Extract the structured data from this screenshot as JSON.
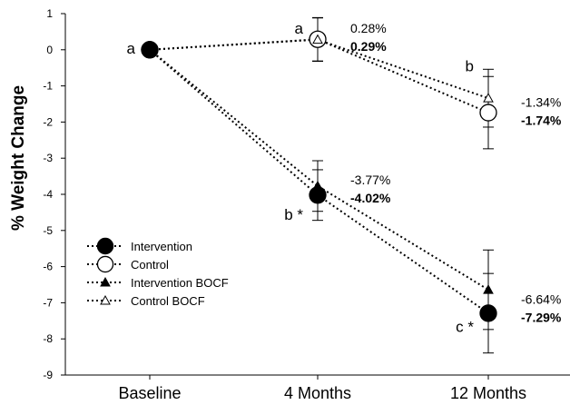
{
  "chart_data": {
    "type": "line",
    "title": "",
    "xlabel": "",
    "ylabel": "% Weight Change",
    "categories": [
      "Baseline",
      "4 Months",
      "12 Months"
    ],
    "ylim": [
      -9,
      1
    ],
    "yticks": [
      -9,
      -8,
      -7,
      -6,
      -5,
      -4,
      -3,
      -2,
      -1,
      0,
      1
    ],
    "grid": false,
    "legend_position": "bottom-left",
    "series": [
      {
        "name": "Intervention",
        "marker": "filled-circle",
        "values": [
          0,
          -4.02,
          -7.29
        ],
        "errors": [
          null,
          0.7,
          1.1
        ]
      },
      {
        "name": "Control",
        "marker": "open-circle",
        "values": [
          0,
          0.29,
          -1.74
        ],
        "errors": [
          null,
          0.6,
          1.0
        ]
      },
      {
        "name": "Intervention  BOCF",
        "marker": "filled-triangle",
        "values": [
          0,
          -3.77,
          -6.64
        ],
        "errors": [
          null,
          0.7,
          1.1
        ]
      },
      {
        "name": "Control BOCF",
        "marker": "open-triangle",
        "values": [
          0,
          0.28,
          -1.34
        ],
        "errors": [
          null,
          0.6,
          0.8
        ]
      }
    ],
    "annotations": [
      {
        "text": "0.28%",
        "bold": false,
        "category": "4 Months",
        "y": 0.6
      },
      {
        "text": "0.29%",
        "bold": true,
        "category": "4 Months",
        "y": 0.1
      },
      {
        "text": "-1.34%",
        "bold": false,
        "category": "12 Months",
        "y": -1.45
      },
      {
        "text": "-1.74%",
        "bold": true,
        "category": "12 Months",
        "y": -1.95
      },
      {
        "text": "-3.77%",
        "bold": false,
        "category": "4 Months",
        "y": -3.6
      },
      {
        "text": "-4.02%",
        "bold": true,
        "category": "4 Months",
        "y": -4.1
      },
      {
        "text": "-6.64%",
        "bold": false,
        "category": "12 Months",
        "y": -6.9
      },
      {
        "text": "-7.29%",
        "bold": true,
        "category": "12 Months",
        "y": -7.4
      }
    ],
    "letters": [
      {
        "text": "a",
        "category": "Baseline",
        "y": 0.05
      },
      {
        "text": "a",
        "category": "4 Months",
        "y": 0.6
      },
      {
        "text": "b",
        "category": "12 Months",
        "y": -0.45
      },
      {
        "text": "b *",
        "category": "4 Months",
        "y": -4.55
      },
      {
        "text": "c *",
        "category": "12 Months",
        "y": -7.65
      }
    ]
  }
}
